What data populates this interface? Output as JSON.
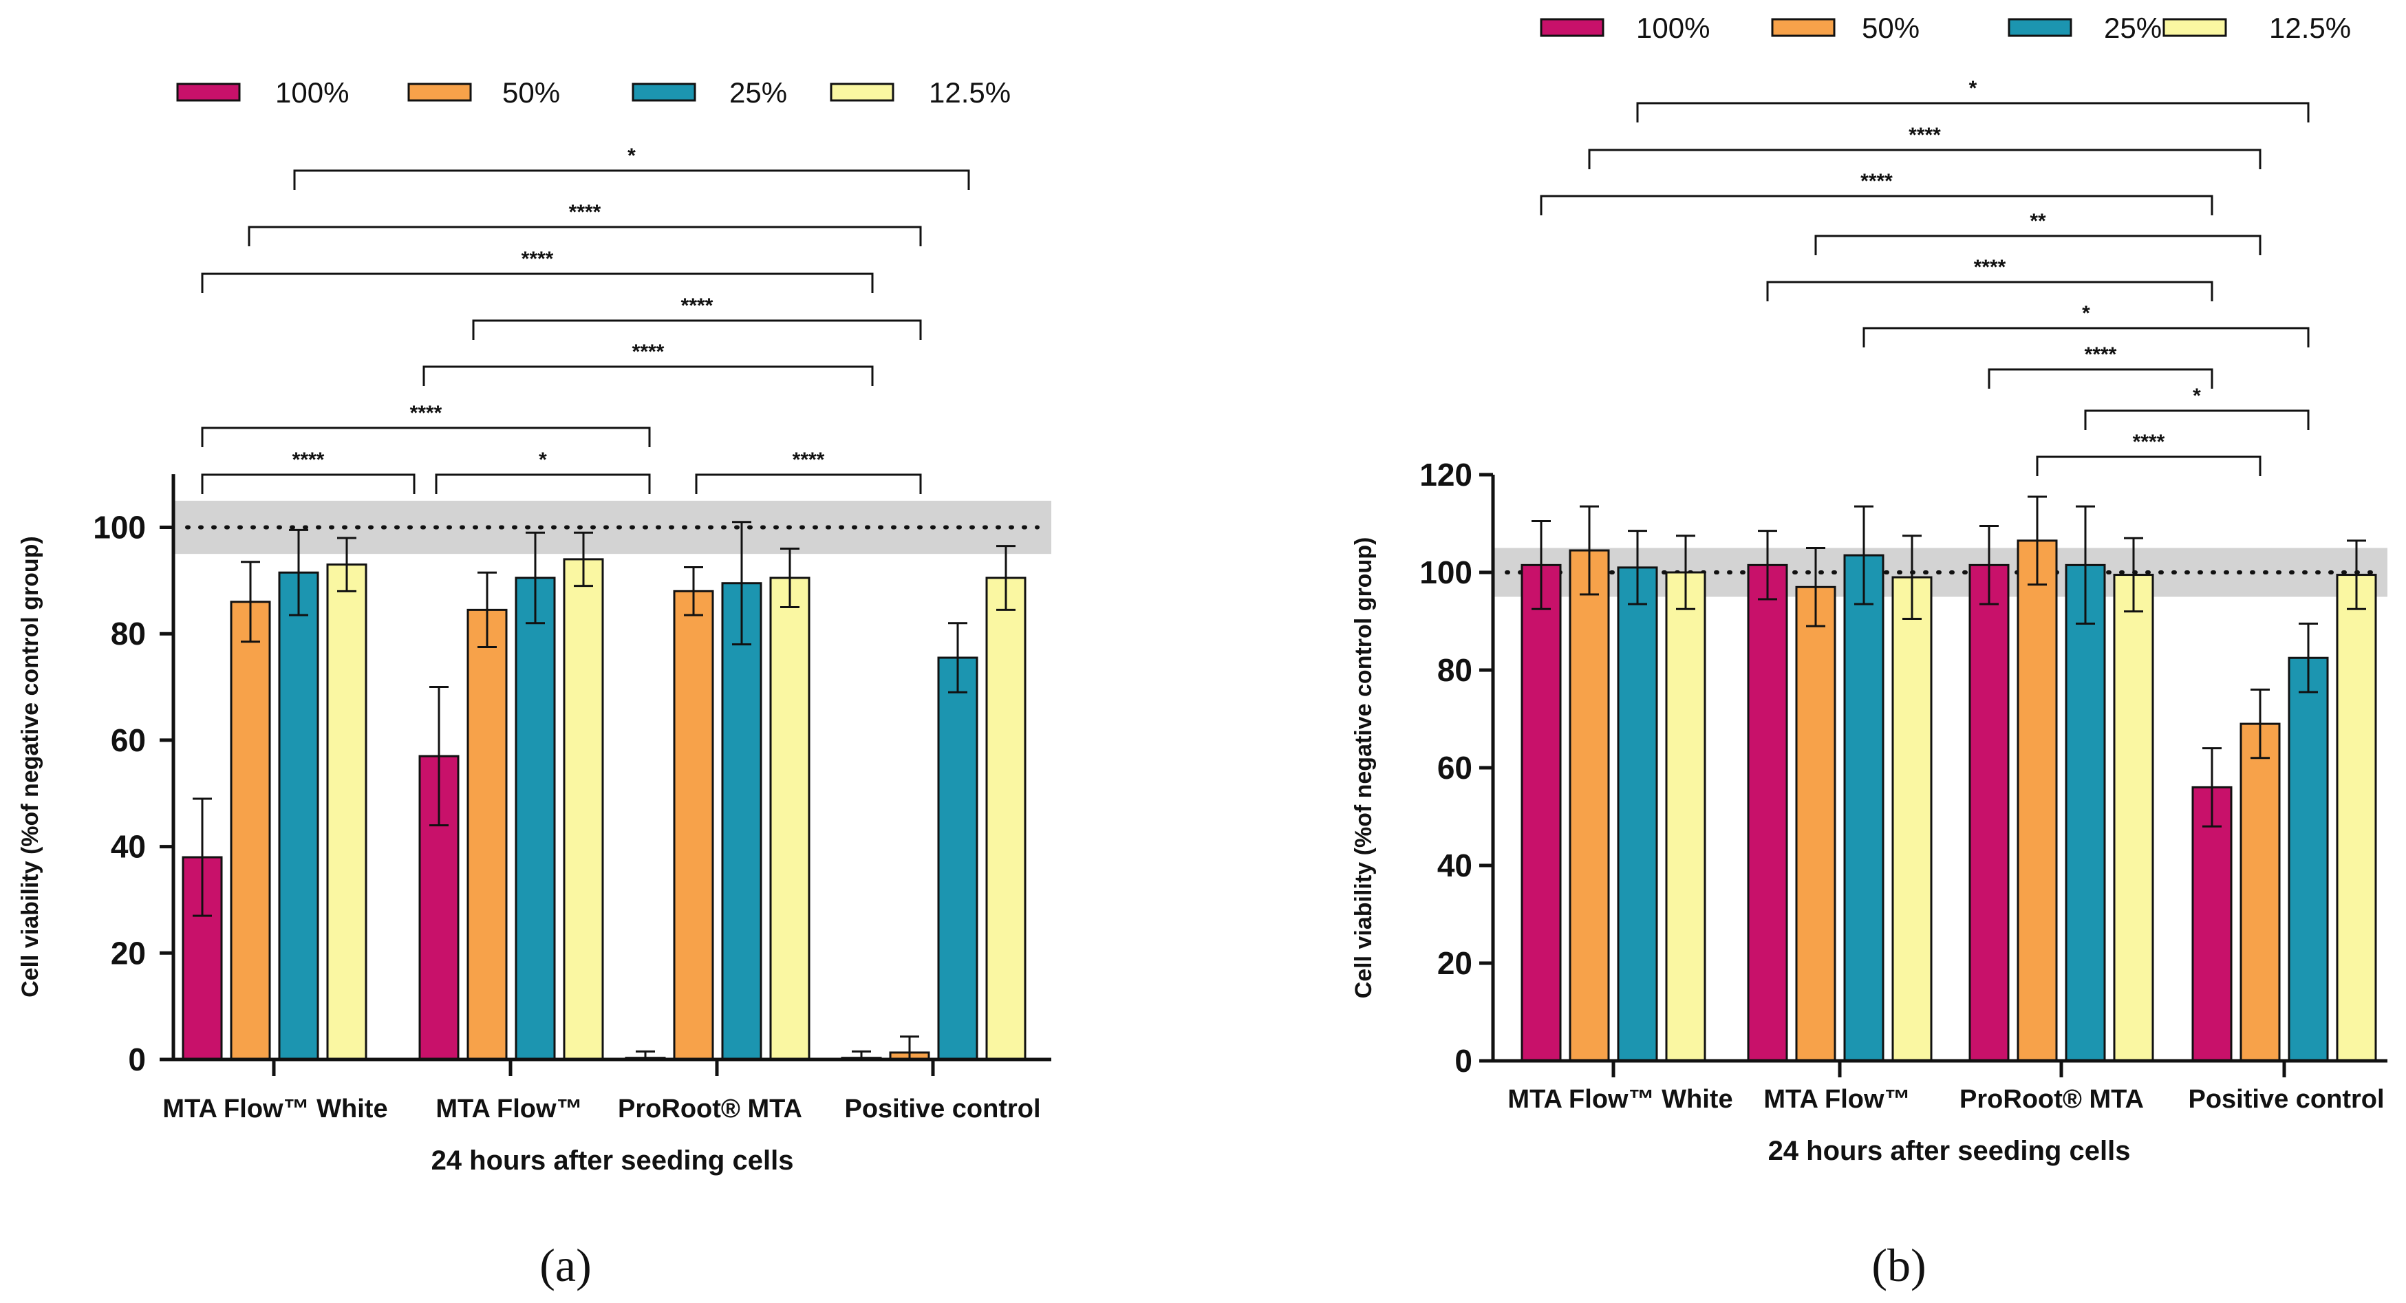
{
  "legend": [
    "100%",
    "50%",
    "25%",
    "12.5%"
  ],
  "colors": {
    "100%": "#C8116A",
    "50%": "#F7A24A",
    "25%": "#1C95B0",
    "12.5%": "#FAF7A2",
    "reference_band": "#D3D3D3"
  },
  "chart_data": [
    {
      "type": "bar",
      "panel_label": "(a)",
      "title": "",
      "xlabel": "24 hours after seeding cells",
      "ylabel": "Cell viability (%of negative control group)",
      "categories": [
        "MTA Flow™ White",
        "MTA Flow™",
        "ProRoot® MTA",
        "Positive control"
      ],
      "ylim": [
        0,
        110
      ],
      "yticks": [
        0,
        20,
        40,
        60,
        80,
        100
      ],
      "reference_line": 100,
      "reference_band": [
        95,
        105
      ],
      "series": [
        {
          "name": "100%",
          "values": [
            38,
            57,
            0.3,
            0.3
          ],
          "errors": [
            11,
            13,
            1.2,
            1.2
          ]
        },
        {
          "name": "50%",
          "values": [
            86,
            84.5,
            88,
            1.3
          ],
          "errors": [
            7.5,
            7,
            4.5,
            3
          ]
        },
        {
          "name": "25%",
          "values": [
            91.5,
            90.5,
            89.5,
            75.5
          ],
          "errors": [
            8,
            8.5,
            11.5,
            6.5
          ]
        },
        {
          "name": "12.5%",
          "values": [
            93,
            94,
            90.5,
            90.5
          ],
          "errors": [
            5,
            5,
            5.5,
            6
          ]
        }
      ],
      "significance": [
        {
          "label": "*"
        },
        {
          "label": "****"
        },
        {
          "label": "****"
        },
        {
          "label": "****"
        },
        {
          "label": "****"
        },
        {
          "label": "****"
        },
        {
          "label": "****"
        },
        {
          "label": "*"
        },
        {
          "label": "****"
        }
      ]
    },
    {
      "type": "bar",
      "panel_label": "(b)",
      "title": "",
      "xlabel": "24 hours after seeding cells",
      "ylabel": "Cell viability (%of negative control group)",
      "categories": [
        "MTA Flow™ White",
        "MTA Flow™",
        "ProRoot® MTA",
        "Positive control"
      ],
      "ylim": [
        0,
        120
      ],
      "yticks": [
        0,
        20,
        40,
        60,
        80,
        100,
        120
      ],
      "reference_line": 100,
      "reference_band": [
        95,
        105
      ],
      "series": [
        {
          "name": "100%",
          "values": [
            101.5,
            101.5,
            101.5,
            56
          ],
          "errors": [
            9,
            7,
            8,
            8
          ]
        },
        {
          "name": "50%",
          "values": [
            104.5,
            97,
            106.5,
            69
          ],
          "errors": [
            9,
            8,
            9,
            7
          ]
        },
        {
          "name": "25%",
          "values": [
            101,
            103.5,
            101.5,
            82.5
          ],
          "errors": [
            7.5,
            10,
            12,
            7
          ]
        },
        {
          "name": "12.5%",
          "values": [
            100,
            99,
            99.5,
            99.5
          ],
          "errors": [
            7.5,
            8.5,
            7.5,
            7
          ]
        }
      ],
      "significance": [
        {
          "label": "*"
        },
        {
          "label": "****"
        },
        {
          "label": "****"
        },
        {
          "label": "**"
        },
        {
          "label": "****"
        },
        {
          "label": "*"
        },
        {
          "label": "****"
        },
        {
          "label": "*"
        },
        {
          "label": "****"
        }
      ]
    }
  ]
}
